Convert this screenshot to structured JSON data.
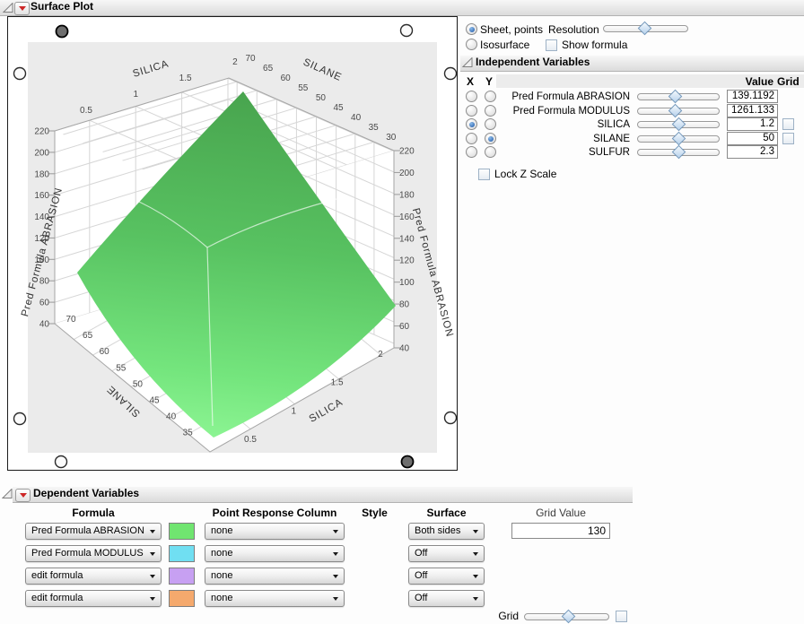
{
  "window": {
    "title": "Surface Plot"
  },
  "top_controls": {
    "sheet_points_label": "Sheet, points",
    "isosurface_label": "Isosurface",
    "resolution_label": "Resolution",
    "show_formula_label": "Show formula",
    "sheet_points_selected": true,
    "isosurface_selected": false,
    "show_formula_checked": false,
    "resolution_slider_pos": 0.49
  },
  "independent_variables": {
    "title": "Independent Variables",
    "col_x": "X",
    "col_y": "Y",
    "col_value": "Value",
    "col_grid": "Grid",
    "lock_z_label": "Lock Z Scale",
    "lock_z_checked": false,
    "rows": [
      {
        "name": "Pred Formula ABRASION",
        "value": "139.1192",
        "x_selected": false,
        "y_selected": false,
        "grid_checkbox": false,
        "slider_pos": 0.45
      },
      {
        "name": "Pred Formula MODULUS",
        "value": "1261.133",
        "x_selected": false,
        "y_selected": false,
        "grid_checkbox": false,
        "slider_pos": 0.45
      },
      {
        "name": "SILICA",
        "value": "1.2",
        "x_selected": true,
        "y_selected": false,
        "grid_checkbox": true,
        "grid_checked": false,
        "slider_pos": 0.5
      },
      {
        "name": "SILANE",
        "value": "50",
        "x_selected": false,
        "y_selected": true,
        "grid_checkbox": true,
        "grid_checked": false,
        "slider_pos": 0.5
      },
      {
        "name": "SULFUR",
        "value": "2.3",
        "x_selected": false,
        "y_selected": false,
        "grid_checkbox": false,
        "slider_pos": 0.5
      }
    ]
  },
  "dependent_variables": {
    "title": "Dependent Variables",
    "headers": {
      "formula": "Formula",
      "point_response": "Point Response Column",
      "style": "Style",
      "surface": "Surface",
      "grid_value": "Grid Value"
    },
    "grid_label": "Grid",
    "grid_slider_pos": 0.52,
    "grid_checked": false,
    "rows": [
      {
        "formula": "Pred Formula ABRASION",
        "swatch_color": "#70e570",
        "point_response": "none",
        "surface": "Both sides",
        "grid_value": "130"
      },
      {
        "formula": "Pred Formula MODULUS",
        "swatch_color": "#70dff2",
        "point_response": "none",
        "surface": "Off"
      },
      {
        "formula": "edit formula",
        "swatch_color": "#c7a0f2",
        "point_response": "none",
        "surface": "Off"
      },
      {
        "formula": "edit formula",
        "swatch_color": "#f5a96d",
        "point_response": "none",
        "surface": "Off"
      }
    ]
  },
  "chart_data": {
    "type": "surface",
    "x_axis": {
      "label": "SILICA",
      "ticks": [
        "0.5",
        "1",
        "1.5",
        "2"
      ]
    },
    "y_axis": {
      "label": "SILANE",
      "ticks": [
        "70",
        "65",
        "60",
        "55",
        "50",
        "45",
        "40",
        "35",
        "30"
      ]
    },
    "x_axis_front_ticks": [
      "0.5",
      "1",
      "1.5",
      "2"
    ],
    "y_axis_front_ticks": [
      "70",
      "65",
      "60",
      "55",
      "50",
      "45",
      "40",
      "35"
    ],
    "z_axis": {
      "label": "Pred Formula ABRASION",
      "ticks": [
        "220",
        "200",
        "180",
        "160",
        "140",
        "120",
        "100",
        "80",
        "60",
        "40"
      ]
    },
    "surface_colors": {
      "top": "#48a44e",
      "mid": "#58c261",
      "low": "#74e57d",
      "bottom": "#8bf492"
    },
    "plot_background": "#ebebeb"
  }
}
